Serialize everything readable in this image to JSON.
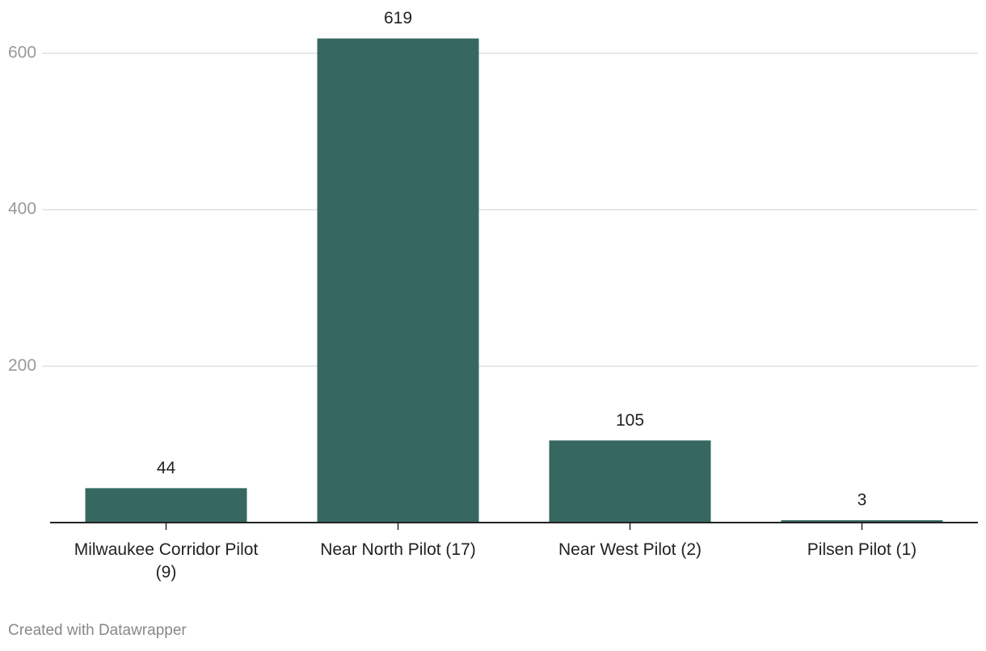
{
  "chart_data": {
    "type": "bar",
    "categories": [
      "Milwaukee Corridor Pilot (9)",
      "Near North Pilot (17)",
      "Near West Pilot (2)",
      "Pilsen Pilot (1)"
    ],
    "values": [
      44,
      619,
      105,
      3
    ],
    "color": "#366861",
    "ylim": [
      0,
      600
    ],
    "yticks": [
      200,
      400,
      600
    ],
    "grid": true,
    "credit": "Created with Datawrapper"
  }
}
